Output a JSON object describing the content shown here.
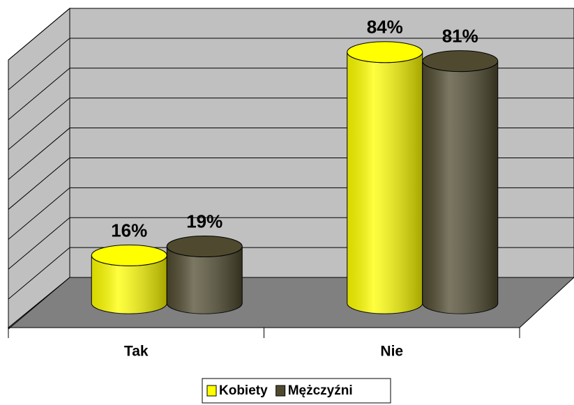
{
  "chart_data": {
    "type": "bar3d",
    "categories": [
      "Tak",
      "Nie"
    ],
    "series": [
      {
        "name": "Kobiety",
        "color": "#ffff00",
        "values": [
          16,
          84
        ],
        "value_labels": [
          "16%",
          "84%"
        ]
      },
      {
        "name": "Mężczyźni",
        "color": "#4f4a2f",
        "values": [
          19,
          81
        ],
        "value_labels": [
          "19%",
          "81%"
        ]
      }
    ],
    "ylim": [
      0,
      90
    ],
    "yticks": [
      0,
      10,
      20,
      30,
      40,
      50,
      60,
      70,
      80,
      90
    ],
    "grid": true,
    "legend": "bottom"
  }
}
